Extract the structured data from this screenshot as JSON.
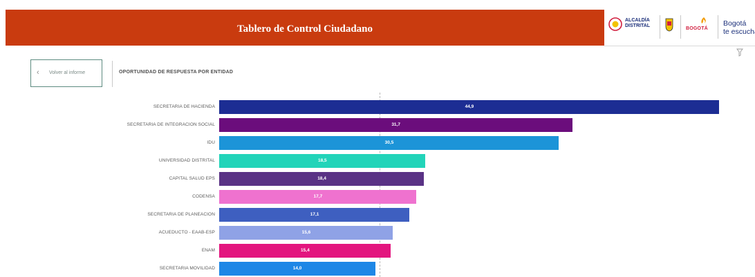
{
  "header": {
    "title": "Tablero de Control Ciudadano",
    "logos": {
      "alcaldia_text": "ALCALDÍA DISTRITAL",
      "bogota_word": "BOGOTÁ",
      "tagline_line1": "Bogotá",
      "tagline_line2": "te escucha"
    }
  },
  "back_button": {
    "label": "Volver al informe"
  },
  "section": {
    "title": "OPORTUNIDAD DE RESPUESTA POR ENTIDAD"
  },
  "chart_data": {
    "type": "bar",
    "orientation": "horizontal",
    "categories": [
      "SECRETARIA DE HACIENDA",
      "SECRETARIA DE INTEGRACION SOCIAL",
      "IDU",
      "UNIVERSIDAD DISTRITAL",
      "CAPITAL SALUD EPS",
      "CODENSA",
      "SECRETARIA DE PLANEACION",
      "ACUEDUCTO - EAAB-ESP",
      "ENAM",
      "SECRETARIA MOVILIDAD"
    ],
    "values": [
      44.9,
      31.7,
      30.5,
      18.5,
      18.4,
      17.7,
      17.1,
      15.6,
      15.4,
      14.0
    ],
    "value_labels": [
      "44,9",
      "31,7",
      "30,5",
      "18,5",
      "18,4",
      "17,7",
      "17,1",
      "15,6",
      "15,4",
      "14,0"
    ],
    "colors": [
      "#1c2d93",
      "#6b0d7c",
      "#1c94d8",
      "#22d4b9",
      "#5a3285",
      "#ef72cf",
      "#3e5fc0",
      "#8fa2e6",
      "#e3157f",
      "#1d87e6"
    ],
    "xlim": [
      0,
      46
    ],
    "reference_line": 14.4,
    "grid": false,
    "title": "",
    "xlabel": "",
    "ylabel": ""
  },
  "colors": {
    "header_bg": "#c93b0f",
    "back_border": "#5d8b80"
  }
}
